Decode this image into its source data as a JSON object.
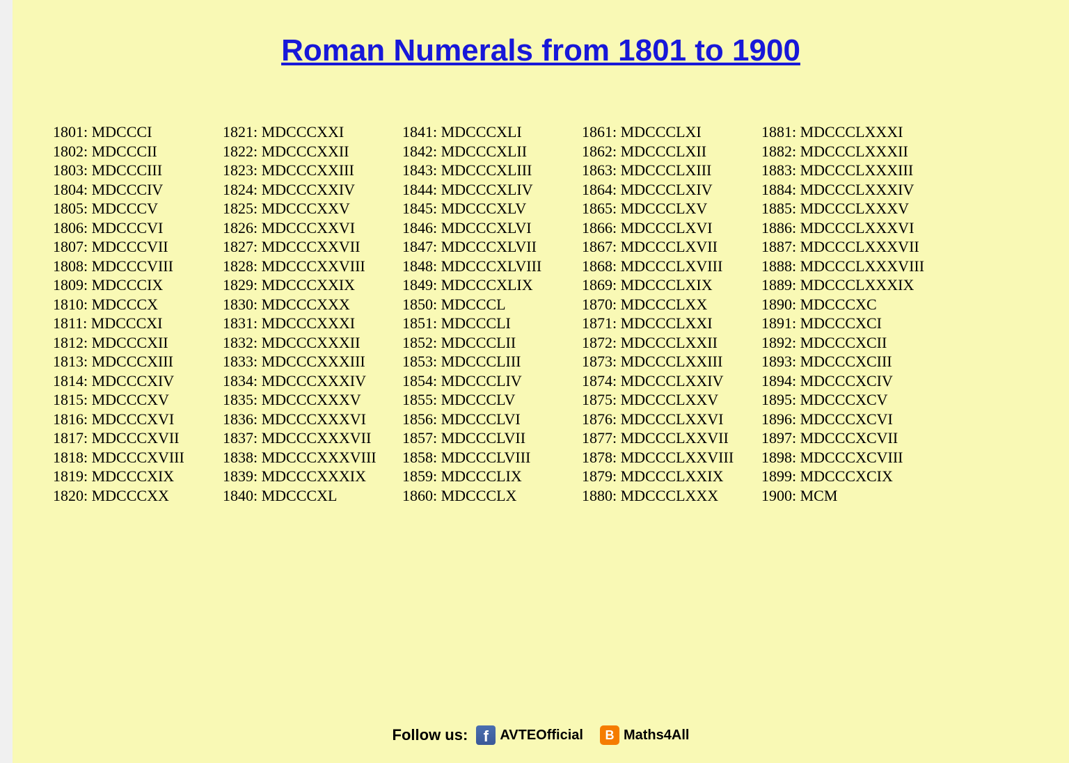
{
  "title": "Roman Numerals from 1801 to 1900",
  "title_color": "#1818d8",
  "title_fontsize": 44,
  "background_color": "#f9f9b5",
  "left_border_color": "#f0f0f0",
  "text_color": "#000000",
  "body_fontsize": 22,
  "line_height": 27.5,
  "columns": [
    [
      "1801: MDCCCI",
      "1802: MDCCCII",
      "1803: MDCCCIII",
      "1804: MDCCCIV",
      "1805: MDCCCV",
      "1806: MDCCCVI",
      "1807: MDCCCVII",
      "1808: MDCCCVIII",
      "1809: MDCCCIX",
      "1810: MDCCCX",
      "1811: MDCCCXI",
      "1812: MDCCCXII",
      "1813: MDCCCXIII",
      "1814: MDCCCXIV",
      "1815: MDCCCXV",
      "1816: MDCCCXVI",
      "1817: MDCCCXVII",
      "1818: MDCCCXVIII",
      "1819: MDCCCXIX",
      "1820: MDCCCXX"
    ],
    [
      "1821: MDCCCXXI",
      "1822: MDCCCXXII",
      "1823: MDCCCXXIII",
      "1824: MDCCCXXIV",
      "1825: MDCCCXXV",
      "1826: MDCCCXXVI",
      "1827: MDCCCXXVII",
      "1828: MDCCCXXVIII",
      "1829: MDCCCXXIX",
      "1830: MDCCCXXX",
      "1831: MDCCCXXXI",
      "1832: MDCCCXXXII",
      "1833: MDCCCXXXIII",
      "1834: MDCCCXXXIV",
      "1835: MDCCCXXXV",
      "1836: MDCCCXXXVI",
      "1837: MDCCCXXXVII",
      "1838: MDCCCXXXVIII",
      "1839: MDCCCXXXIX",
      "1840: MDCCCXL"
    ],
    [
      "1841: MDCCCXLI",
      "1842: MDCCCXLII",
      "1843: MDCCCXLIII",
      "1844: MDCCCXLIV",
      "1845: MDCCCXLV",
      "1846: MDCCCXLVI",
      "1847: MDCCCXLVII",
      "1848: MDCCCXLVIII",
      "1849: MDCCCXLIX",
      "1850: MDCCCL",
      "1851: MDCCCLI",
      "1852: MDCCCLII",
      "1853: MDCCCLIII",
      "1854: MDCCCLIV",
      "1855: MDCCCLV",
      "1856: MDCCCLVI",
      "1857: MDCCCLVII",
      "1858: MDCCCLVIII",
      "1859: MDCCCLIX",
      "1860: MDCCCLX"
    ],
    [
      "1861: MDCCCLXI",
      "1862: MDCCCLXII",
      "1863: MDCCCLXIII",
      "1864: MDCCCLXIV",
      "1865: MDCCCLXV",
      "1866: MDCCCLXVI",
      "1867: MDCCCLXVII",
      "1868: MDCCCLXVIII",
      "1869: MDCCCLXIX",
      "1870: MDCCCLXX",
      "1871: MDCCCLXXI",
      "1872: MDCCCLXXII",
      "1873: MDCCCLXXIII",
      "1874: MDCCCLXXIV",
      "1875: MDCCCLXXV",
      "1876: MDCCCLXXVI",
      "1877: MDCCCLXXVII",
      "1878: MDCCCLXXVIII",
      "1879: MDCCCLXXIX",
      "1880: MDCCCLXXX"
    ],
    [
      "1881: MDCCCLXXXI",
      "1882: MDCCCLXXXII",
      "1883: MDCCCLXXXIII",
      "1884: MDCCCLXXXIV",
      "1885: MDCCCLXXXV",
      "1886: MDCCCLXXXVI",
      "1887: MDCCCLXXXVII",
      "1888: MDCCCLXXXVIII",
      "1889: MDCCCLXXXIX",
      "1890: MDCCCXC",
      "1891: MDCCCXCI",
      "1892: MDCCCXCII",
      "1893: MDCCCXCIII",
      "1894: MDCCCXCIV",
      "1895: MDCCCXCV",
      "1896: MDCCCXCVI",
      "1897: MDCCCXCVII",
      "1898: MDCCCXCVIII",
      "1899: MDCCCXCIX",
      "1900: MCM"
    ]
  ],
  "footer": {
    "follow_label": "Follow us:",
    "facebook": {
      "glyph": "f",
      "label": "AVTEOfficial",
      "bg": "#3b5998"
    },
    "blogger": {
      "glyph": "B",
      "label": "Maths4All",
      "bg": "#f57c00"
    }
  }
}
